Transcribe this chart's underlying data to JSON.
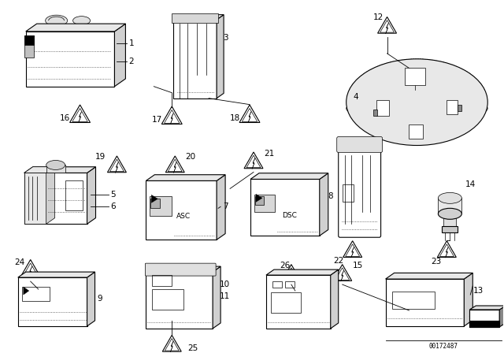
{
  "background_color": "#ffffff",
  "line_color": "#000000",
  "fig_width": 6.4,
  "fig_height": 4.48,
  "dpi": 100,
  "diagram_id": "00172487",
  "gray": "#888888",
  "lightgray": "#cccccc",
  "darkgray": "#444444"
}
